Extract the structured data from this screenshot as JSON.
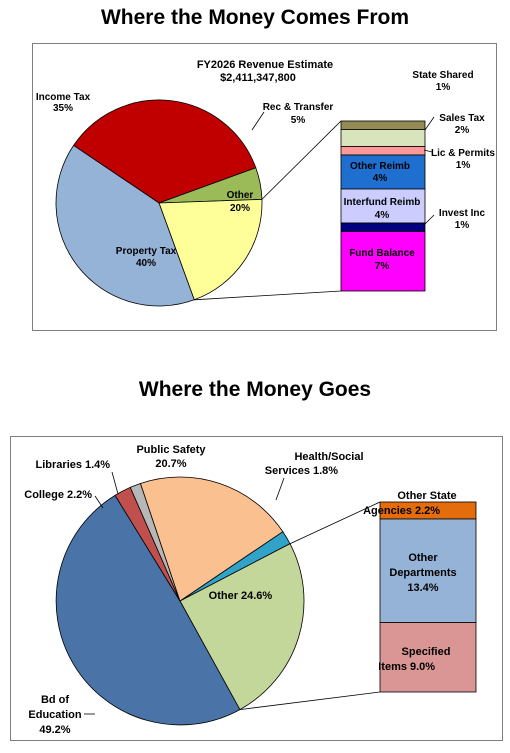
{
  "chart_data": [
    {
      "type": "pie",
      "title": "Where the Money Comes From",
      "subtitle_line1": "FY2026  Revenue Estimate",
      "subtitle_line2": "$2,411,347,800",
      "slices": [
        {
          "name": "Income Tax",
          "label": "35%",
          "value": 35,
          "color": "#c00000"
        },
        {
          "name": "Rec & Transfer",
          "label": "5%",
          "value": 5,
          "color": "#9bbb59"
        },
        {
          "name": "Other",
          "label": "20%",
          "value": 20,
          "color": "#ffff99"
        },
        {
          "name": "Property Tax",
          "label": "40%",
          "value": 40,
          "color": "#95b3d7"
        }
      ],
      "breakdown": [
        {
          "name": "State Shared",
          "label": "1%",
          "value": 1,
          "color": "#948a54"
        },
        {
          "name": "Sales Tax",
          "label": "2%",
          "value": 2,
          "color": "#d7e4bc"
        },
        {
          "name": "Lic & Permits",
          "label": "1%",
          "value": 1,
          "color": "#ff9999"
        },
        {
          "name": "Other Reimb",
          "label": "4%",
          "value": 4,
          "color": "#1f6fd0"
        },
        {
          "name": "Interfund Reimb",
          "label": "4%",
          "value": 4,
          "color": "#ccccff"
        },
        {
          "name": "Invest Inc",
          "label": "1%",
          "value": 1,
          "color": "#000080"
        },
        {
          "name": "Fund Balance",
          "label": "7%",
          "value": 7,
          "color": "#ff00ff"
        }
      ]
    },
    {
      "type": "pie",
      "title": "Where the Money Goes",
      "slices": [
        {
          "name": "Health/Social Services",
          "label": "1.8%",
          "value": 1.8,
          "color": "#31a2c8"
        },
        {
          "name": "Other",
          "label": "24.6%",
          "value": 24.6,
          "color": "#c4d79b"
        },
        {
          "name": "Bd of Education",
          "label": "49.2%",
          "value": 49.2,
          "color": "#4a73a8"
        },
        {
          "name": "College",
          "label": "2.2%",
          "value": 2.2,
          "color": "#c0504d"
        },
        {
          "name": "Libraries",
          "label": "1.4%",
          "value": 1.4,
          "color": "#b7b7b7"
        },
        {
          "name": "Public Safety",
          "label": "20.7%",
          "value": 20.7,
          "color": "#fac090"
        }
      ],
      "breakdown": [
        {
          "name": "Other State Agencies",
          "label": "2.2%",
          "value": 2.2,
          "color": "#e46c0a"
        },
        {
          "name": "Other Departments",
          "label": "13.4%",
          "value": 13.4,
          "color": "#95b3d7"
        },
        {
          "name": "Specified Items",
          "label": "9.0%",
          "value": 9.0,
          "color": "#d99694"
        }
      ]
    }
  ]
}
